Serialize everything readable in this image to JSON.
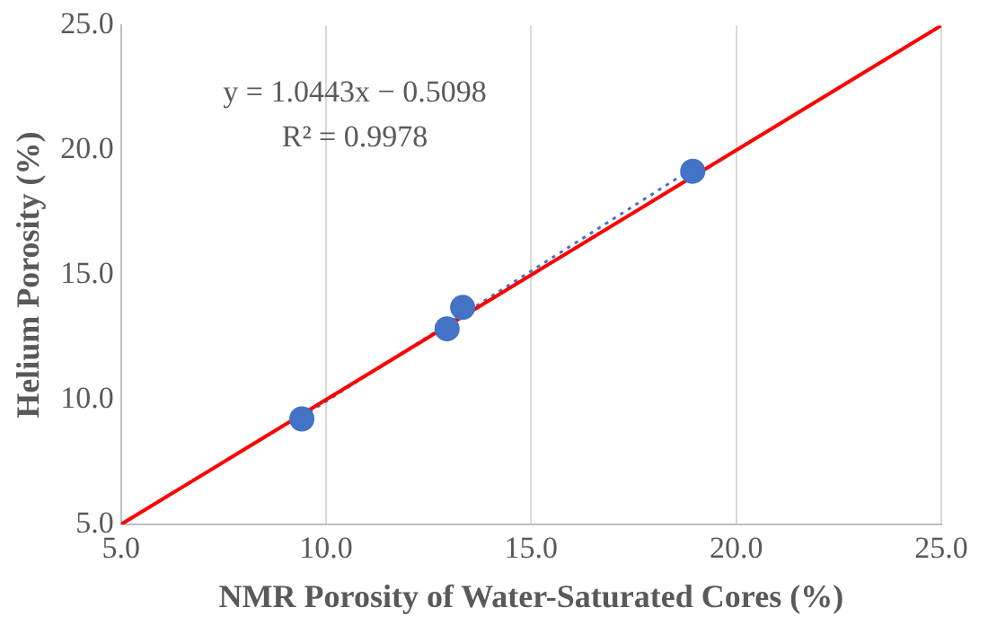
{
  "chart_data": {
    "type": "scatter",
    "xlabel": "NMR Porosity of Water-Saturated Cores (%)",
    "ylabel": "Helium Porosity (%)",
    "xlim": [
      5,
      25
    ],
    "ylim": [
      5,
      25
    ],
    "xticks": [
      {
        "value": 5,
        "label": "5.0"
      },
      {
        "value": 10,
        "label": "10.0"
      },
      {
        "value": 15,
        "label": "15.0"
      },
      {
        "value": 20,
        "label": "20.0"
      },
      {
        "value": 25,
        "label": "25.0"
      }
    ],
    "yticks": [
      {
        "value": 5,
        "label": "5.0"
      },
      {
        "value": 10,
        "label": "10.0"
      },
      {
        "value": 15,
        "label": "15.0"
      },
      {
        "value": 20,
        "label": "20.0"
      },
      {
        "value": 25,
        "label": "25.0"
      }
    ],
    "grid": "x",
    "series": [
      {
        "type": "line",
        "color": "#ff0000",
        "x": [
          5,
          25
        ],
        "values": [
          5,
          25
        ],
        "marker": "none",
        "line_style": "solid"
      },
      {
        "type": "line",
        "color": "#4472c4",
        "x": [
          9.41,
          18.94
        ],
        "values": [
          9.32,
          19.27
        ],
        "marker": "none",
        "line_style": "dotted"
      },
      {
        "type": "scatter",
        "color": "#4472c4",
        "x": [
          9.41,
          12.95,
          13.33,
          18.94
        ],
        "values": [
          9.23,
          12.84,
          13.7,
          19.16
        ],
        "marker": "circle"
      }
    ],
    "annotations": [
      "y = 1.0443x − 0.5098",
      "R² = 0.9978"
    ]
  }
}
